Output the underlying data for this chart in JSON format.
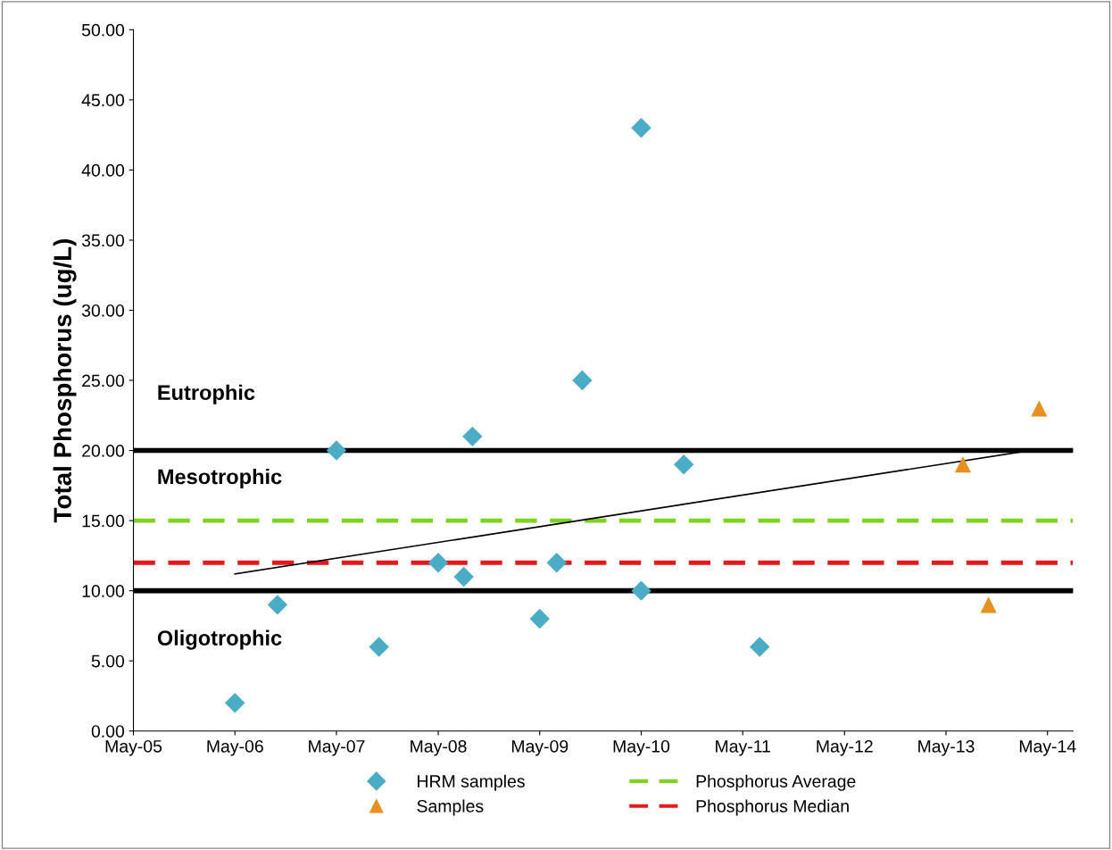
{
  "chart_data": {
    "type": "scatter",
    "ylabel": "Total Phosphorus (ug/L)",
    "xlim": [
      "2005-05",
      "2014-08"
    ],
    "ylim": [
      0,
      50
    ],
    "xticks": [
      {
        "value": "2005-05",
        "label": "May-05"
      },
      {
        "value": "2006-05",
        "label": "May-06"
      },
      {
        "value": "2007-05",
        "label": "May-07"
      },
      {
        "value": "2008-05",
        "label": "May-08"
      },
      {
        "value": "2009-05",
        "label": "May-09"
      },
      {
        "value": "2010-05",
        "label": "May-10"
      },
      {
        "value": "2011-05",
        "label": "May-11"
      },
      {
        "value": "2012-05",
        "label": "May-12"
      },
      {
        "value": "2013-05",
        "label": "May-13"
      },
      {
        "value": "2014-05",
        "label": "May-14"
      }
    ],
    "yticks": [
      {
        "value": 0,
        "label": "0.00"
      },
      {
        "value": 5,
        "label": "5.00"
      },
      {
        "value": 10,
        "label": "10.00"
      },
      {
        "value": 15,
        "label": "15.00"
      },
      {
        "value": 20,
        "label": "20.00"
      },
      {
        "value": 25,
        "label": "25.00"
      },
      {
        "value": 30,
        "label": "30.00"
      },
      {
        "value": 35,
        "label": "35.00"
      },
      {
        "value": 40,
        "label": "40.00"
      },
      {
        "value": 45,
        "label": "45.00"
      },
      {
        "value": 50,
        "label": "50.00"
      }
    ],
    "grid": false,
    "legend": "bottom",
    "series": [
      {
        "name": "HRM samples",
        "color": "#4bacc6",
        "marker": "diamond",
        "x": [
          "2006-05",
          "2006-10",
          "2007-05",
          "2007-10",
          "2008-05",
          "2008-08",
          "2008-09",
          "2009-05",
          "2009-07",
          "2009-10",
          "2010-05",
          "2010-05",
          "2010-10",
          "2011-07"
        ],
        "values": [
          2,
          9,
          20,
          6,
          12,
          11,
          21,
          8,
          12,
          25,
          43,
          10,
          19,
          6
        ]
      },
      {
        "name": "Samples",
        "color": "#e5901f",
        "marker": "triangle",
        "x": [
          "2013-07",
          "2013-10",
          "2014-04"
        ],
        "values": [
          19,
          9,
          23
        ]
      },
      {
        "type": "line",
        "color": "#000000",
        "marker": "none",
        "x": [
          "2006-05",
          "2014-04"
        ],
        "values": [
          11.2,
          20.1
        ]
      }
    ],
    "ref_lines": [
      {
        "axis": "y",
        "value": 20,
        "color": "#000000",
        "line_style": "solid"
      },
      {
        "axis": "y",
        "value": 10,
        "color": "#000000",
        "line_style": "solid"
      },
      {
        "axis": "y",
        "value": 15,
        "color": "#7ed321",
        "line_style": "dashed",
        "label": "Phosphorus Average"
      },
      {
        "axis": "y",
        "value": 12,
        "color": "#e31a1c",
        "line_style": "dashed",
        "label": "Phosphorus Median"
      }
    ],
    "annotations": [
      "Eutrophic",
      "Mesotrophic",
      "Oligotrophic"
    ]
  }
}
